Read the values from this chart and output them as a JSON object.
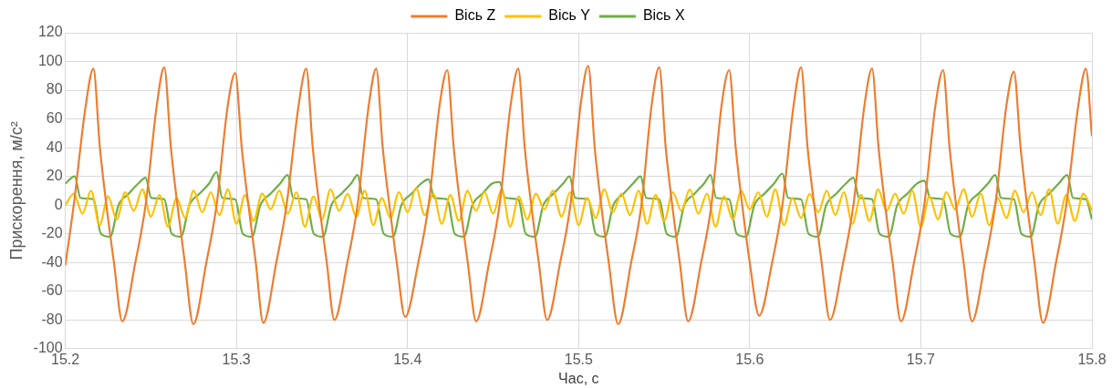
{
  "chart_data": {
    "type": "line",
    "xlabel": "Час, с",
    "ylabel": "Прискорення, м/с²",
    "xlim": [
      15.2,
      15.8
    ],
    "xticks": [
      15.2,
      15.3,
      15.4,
      15.5,
      15.6,
      15.7,
      15.8
    ],
    "ylim": [
      -100,
      120
    ],
    "yticks": [
      -100,
      -80,
      -60,
      -40,
      -20,
      0,
      20,
      40,
      60,
      80,
      100,
      120
    ],
    "grid": true,
    "legend": "top",
    "marker": "none",
    "line_style": "solid",
    "series": [
      {
        "name": "Вісь Z",
        "color": "#ed7d31",
        "x": [
          15.2,
          15.2049,
          15.212,
          15.2164,
          15.2202,
          15.224,
          15.2284,
          15.2333,
          15.2409,
          15.2469,
          15.2535,
          15.2578,
          15.2617,
          15.2655,
          15.2698,
          15.2748,
          15.2824,
          15.2884,
          15.295,
          15.2993,
          15.3031,
          15.307,
          15.3113,
          15.3157,
          15.3233,
          15.3293,
          15.3364,
          15.3408,
          15.3446,
          15.3484,
          15.3528,
          15.3572,
          15.3648,
          15.3708,
          15.3774,
          15.3817,
          15.3855,
          15.3894,
          15.3937,
          15.3986,
          15.4063,
          15.4123,
          15.4188,
          15.4232,
          15.427,
          15.4308,
          15.4352,
          15.4401,
          15.4477,
          15.4538,
          15.4603,
          15.4647,
          15.4685,
          15.4723,
          15.4767,
          15.4816,
          15.4892,
          15.4952,
          15.5012,
          15.5056,
          15.5094,
          15.5132,
          15.5176,
          15.5231,
          15.5307,
          15.5367,
          15.5427,
          15.5471,
          15.5509,
          15.5547,
          15.5591,
          15.564,
          15.5716,
          15.5776,
          15.5836,
          15.588,
          15.5918,
          15.5956,
          15.6,
          15.6055,
          15.6131,
          15.6191,
          15.6257,
          15.63,
          15.6338,
          15.6377,
          15.642,
          15.6469,
          15.6546,
          15.6606,
          15.6671,
          15.6715,
          15.6753,
          15.6791,
          15.6835,
          15.6884,
          15.696,
          15.702,
          15.7086,
          15.713,
          15.7168,
          15.7206,
          15.725,
          15.7299,
          15.7375,
          15.7435,
          15.7501,
          15.7544,
          15.7583,
          15.7621,
          15.7664,
          15.7714,
          15.779,
          15.785,
          15.7921,
          15.7965,
          15.8
        ],
        "values": [
          -42,
          0,
          70,
          95,
          40,
          0,
          -40,
          -81,
          -40,
          0,
          70,
          96,
          40,
          0,
          -40,
          -83,
          -40,
          0,
          70,
          92,
          40,
          0,
          -40,
          -82,
          -40,
          0,
          70,
          95,
          40,
          0,
          -40,
          -80,
          -40,
          0,
          70,
          95,
          40,
          0,
          -40,
          -78,
          -40,
          0,
          70,
          94,
          40,
          0,
          -40,
          -81,
          -40,
          0,
          70,
          95,
          40,
          0,
          -40,
          -80,
          -40,
          0,
          70,
          97,
          40,
          0,
          -40,
          -83,
          -40,
          0,
          70,
          96,
          40,
          0,
          -40,
          -81,
          -40,
          0,
          70,
          94,
          40,
          0,
          -40,
          -77,
          -40,
          0,
          70,
          96,
          40,
          0,
          -40,
          -80,
          -40,
          0,
          70,
          95,
          40,
          0,
          -40,
          -81,
          -40,
          0,
          70,
          94,
          40,
          0,
          -40,
          -81,
          -40,
          0,
          70,
          93,
          40,
          0,
          -40,
          -82,
          -40,
          0,
          70,
          95,
          48
        ]
      },
      {
        "name": "Вісь Y",
        "color": "#ffc000",
        "x": [
          15.2,
          15.205,
          15.21,
          15.215,
          15.22,
          15.225,
          15.23,
          15.235,
          15.24,
          15.245,
          15.25,
          15.255,
          15.26,
          15.265,
          15.27,
          15.275,
          15.28,
          15.285,
          15.29,
          15.295,
          15.3,
          15.305,
          15.31,
          15.315,
          15.32,
          15.325,
          15.33,
          15.335,
          15.34,
          15.345,
          15.35,
          15.355,
          15.36,
          15.365,
          15.37,
          15.375,
          15.38,
          15.385,
          15.39,
          15.395,
          15.4,
          15.405,
          15.41,
          15.415,
          15.42,
          15.425,
          15.43,
          15.435,
          15.44,
          15.445,
          15.45,
          15.455,
          15.46,
          15.465,
          15.47,
          15.475,
          15.48,
          15.485,
          15.49,
          15.495,
          15.5,
          15.505,
          15.51,
          15.515,
          15.52,
          15.525,
          15.53,
          15.535,
          15.54,
          15.545,
          15.55,
          15.555,
          15.56,
          15.565,
          15.57,
          15.575,
          15.58,
          15.585,
          15.59,
          15.595,
          15.6,
          15.605,
          15.61,
          15.615,
          15.62,
          15.625,
          15.63,
          15.635,
          15.64,
          15.645,
          15.65,
          15.655,
          15.66,
          15.665,
          15.67,
          15.675,
          15.68,
          15.685,
          15.69,
          15.695,
          15.7,
          15.705,
          15.71,
          15.715,
          15.72,
          15.725,
          15.73,
          15.735,
          15.74,
          15.745,
          15.75,
          15.755,
          15.76,
          15.765,
          15.77,
          15.775,
          15.78,
          15.785,
          15.79,
          15.795,
          15.8
        ],
        "values": [
          0,
          8,
          -6,
          10,
          -14,
          6,
          -10,
          9,
          -4,
          11,
          -8,
          7,
          -15,
          5,
          -9,
          10,
          -5,
          9,
          -7,
          11,
          -13,
          7,
          -11,
          8,
          -3,
          10,
          -6,
          9,
          -15,
          6,
          -10,
          11,
          -4,
          8,
          -8,
          10,
          -14,
          5,
          -9,
          9,
          -5,
          12,
          -7,
          8,
          -13,
          7,
          -11,
          10,
          -4,
          9,
          -6,
          11,
          -15,
          6,
          -10,
          8,
          -3,
          10,
          -8,
          9,
          -14,
          5,
          -9,
          11,
          -5,
          8,
          -7,
          10,
          -13,
          7,
          -11,
          9,
          -4,
          11,
          -6,
          8,
          -15,
          6,
          -10,
          10,
          -3,
          9,
          -8,
          11,
          -14,
          5,
          -9,
          8,
          -5,
          10,
          -7,
          9,
          -13,
          7,
          -11,
          11,
          -4,
          8,
          -6,
          10,
          -15,
          6,
          -10,
          9,
          -3,
          11,
          -8,
          8,
          -14,
          5,
          -9,
          10,
          -5,
          9,
          -7,
          11,
          -13,
          7,
          -11,
          8,
          -4
        ]
      },
      {
        "name": "Вісь X",
        "color": "#70ad47",
        "x": [
          15.2,
          15.2055,
          15.2088,
          15.2164,
          15.2208,
          15.2262,
          15.2311,
          15.2371,
          15.2426,
          15.2469,
          15.2502,
          15.2578,
          15.2622,
          15.2676,
          15.2725,
          15.2785,
          15.284,
          15.2884,
          15.2917,
          15.2993,
          15.3037,
          15.3091,
          15.314,
          15.32,
          15.3255,
          15.3299,
          15.3332,
          15.3408,
          15.3452,
          15.3506,
          15.3555,
          15.3615,
          15.367,
          15.3708,
          15.3741,
          15.3817,
          15.3861,
          15.3915,
          15.3964,
          15.4024,
          15.4079,
          15.4123,
          15.4156,
          15.4232,
          15.4276,
          15.433,
          15.4379,
          15.4439,
          15.4494,
          15.4538,
          15.4571,
          15.4647,
          15.4691,
          15.4745,
          15.4794,
          15.4854,
          15.4909,
          15.4947,
          15.498,
          15.5056,
          15.51,
          15.5154,
          15.5203,
          15.5263,
          15.5318,
          15.5362,
          15.5395,
          15.5471,
          15.5515,
          15.5569,
          15.5618,
          15.5678,
          15.5733,
          15.5771,
          15.5804,
          15.588,
          15.5924,
          15.5978,
          15.6027,
          15.6087,
          15.6142,
          15.6191,
          15.6224,
          15.63,
          15.6344,
          15.6398,
          15.6447,
          15.6507,
          15.6562,
          15.6606,
          15.6639,
          15.6715,
          15.6759,
          15.6813,
          15.6862,
          15.6922,
          15.6977,
          15.7021,
          15.7054,
          15.713,
          15.7174,
          15.7228,
          15.7277,
          15.7337,
          15.7392,
          15.7435,
          15.7468,
          15.7544,
          15.7588,
          15.7642,
          15.7691,
          15.7751,
          15.7806,
          15.7856,
          15.7889,
          15.7965,
          15.8
        ],
        "values": [
          15,
          20,
          5,
          4,
          -20,
          -22,
          0,
          8,
          15,
          19,
          5,
          4,
          -20,
          -22,
          0,
          8,
          15,
          23,
          5,
          4,
          -20,
          -22,
          0,
          8,
          15,
          21,
          5,
          4,
          -20,
          -22,
          0,
          8,
          15,
          21,
          5,
          4,
          -20,
          -22,
          0,
          8,
          15,
          18,
          5,
          4,
          -20,
          -22,
          0,
          8,
          15,
          16,
          5,
          4,
          -20,
          -22,
          0,
          8,
          15,
          20,
          5,
          4,
          -20,
          -22,
          0,
          8,
          15,
          20,
          5,
          4,
          -20,
          -22,
          0,
          8,
          15,
          21,
          5,
          4,
          -20,
          -22,
          0,
          8,
          15,
          22,
          5,
          4,
          -20,
          -22,
          0,
          8,
          15,
          19,
          5,
          4,
          -20,
          -22,
          0,
          8,
          15,
          17,
          5,
          4,
          -20,
          -22,
          0,
          8,
          15,
          21,
          5,
          4,
          -20,
          -22,
          0,
          8,
          15,
          21,
          5,
          4,
          -10
        ]
      }
    ]
  }
}
